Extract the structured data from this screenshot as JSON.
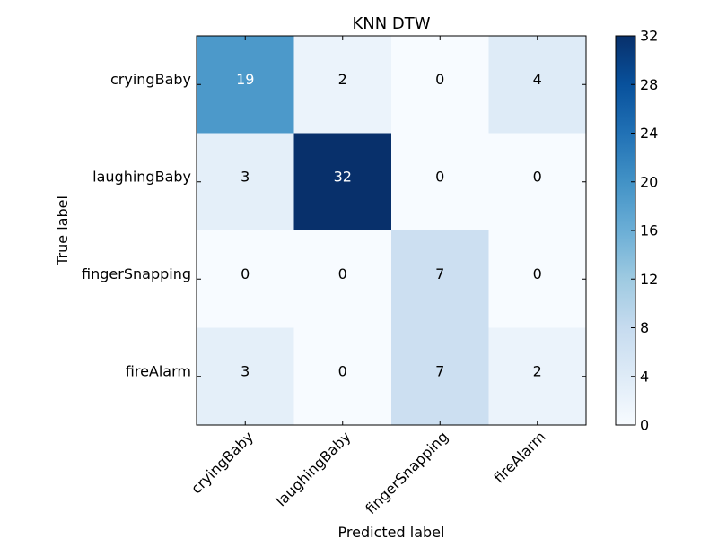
{
  "chart_data": {
    "type": "heatmap",
    "title": "KNN DTW",
    "xlabel": "Predicted label",
    "ylabel": "True label",
    "x_categories": [
      "cryingBaby",
      "laughingBaby",
      "fingerSnapping",
      "fireAlarm"
    ],
    "y_categories": [
      "cryingBaby",
      "laughingBaby",
      "fingerSnapping",
      "fireAlarm"
    ],
    "values": [
      [
        19,
        2,
        0,
        4
      ],
      [
        3,
        32,
        0,
        0
      ],
      [
        0,
        0,
        7,
        0
      ],
      [
        3,
        0,
        7,
        2
      ]
    ],
    "colorbar": {
      "min": 0,
      "max": 32,
      "ticks": [
        "0",
        "4",
        "8",
        "12",
        "16",
        "20",
        "24",
        "28",
        "32"
      ]
    },
    "colormap": "Blues",
    "colormap_low": "#f7fbff",
    "colormap_high": "#08306b",
    "label_color_dark": "#000000",
    "label_color_light": "#ffffff"
  }
}
